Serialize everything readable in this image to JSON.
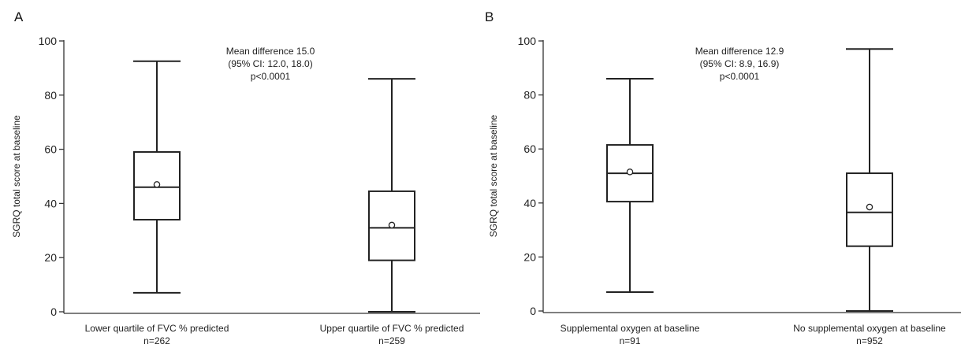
{
  "chart_data": [
    {
      "type": "box",
      "panel_label": "A",
      "ylabel": "SGRQ total score at baseline",
      "ylim": [
        0,
        100
      ],
      "yticks": [
        "0",
        "20",
        "40",
        "60",
        "80",
        "100"
      ],
      "annotation": [
        "Mean difference 15.0",
        "(95% CI: 12.0, 18.0)",
        "p<0.0001"
      ],
      "groups": [
        {
          "label": "Lower quartile of FVC % predicted",
          "n_label": "n=262",
          "min": 7,
          "q1": 34,
          "median": 46,
          "q3": 59,
          "max": 92.5,
          "mean": 47
        },
        {
          "label": "Upper quartile of FVC % predicted",
          "n_label": "n=259",
          "min": 0,
          "q1": 19,
          "median": 31,
          "q3": 44.5,
          "max": 86,
          "mean": 32
        }
      ]
    },
    {
      "type": "box",
      "panel_label": "B",
      "ylabel": "SGRQ total score at baseline",
      "ylim": [
        0,
        100
      ],
      "yticks": [
        "0",
        "20",
        "40",
        "60",
        "80",
        "100"
      ],
      "annotation": [
        "Mean difference 12.9",
        "(95% CI: 8.9, 16.9)",
        "p<0.0001"
      ],
      "groups": [
        {
          "label": "Supplemental oxygen at baseline",
          "n_label": "n=91",
          "min": 7,
          "q1": 40.5,
          "median": 51,
          "q3": 61.5,
          "max": 86,
          "mean": 51.5
        },
        {
          "label": "No supplemental oxygen at baseline",
          "n_label": "n=952",
          "min": 0,
          "q1": 24,
          "median": 36.5,
          "q3": 51,
          "max": 97,
          "mean": 38.5
        }
      ]
    }
  ],
  "colors": {
    "line": "#222222",
    "axis": "#333333"
  }
}
